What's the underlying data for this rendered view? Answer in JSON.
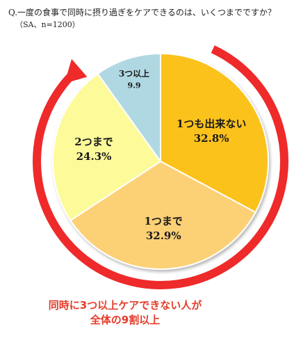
{
  "header": {
    "question": "Q.一度の食事で同時に摂り過ぎをケアできるのは、いくつまでですか？",
    "sample": "（SA、n=1200）"
  },
  "chart_data": {
    "type": "pie",
    "categories": [
      "1つも出来ない",
      "1つまで",
      "2つまで",
      "3つ以上"
    ],
    "values": [
      32.8,
      32.9,
      24.3,
      9.9
    ],
    "value_labels": [
      "32.8%",
      "32.9%",
      "24.3%",
      "9.9"
    ],
    "colors": [
      "#fcc21b",
      "#fcd075",
      "#fdfa9a",
      "#b0d8e3"
    ],
    "start": "12 o'clock, clockwise",
    "arrow_color": "#ee2a2a"
  },
  "callout": {
    "line1": "同時に3つ以上ケアできない人が",
    "line2": "全体の9割以上"
  }
}
